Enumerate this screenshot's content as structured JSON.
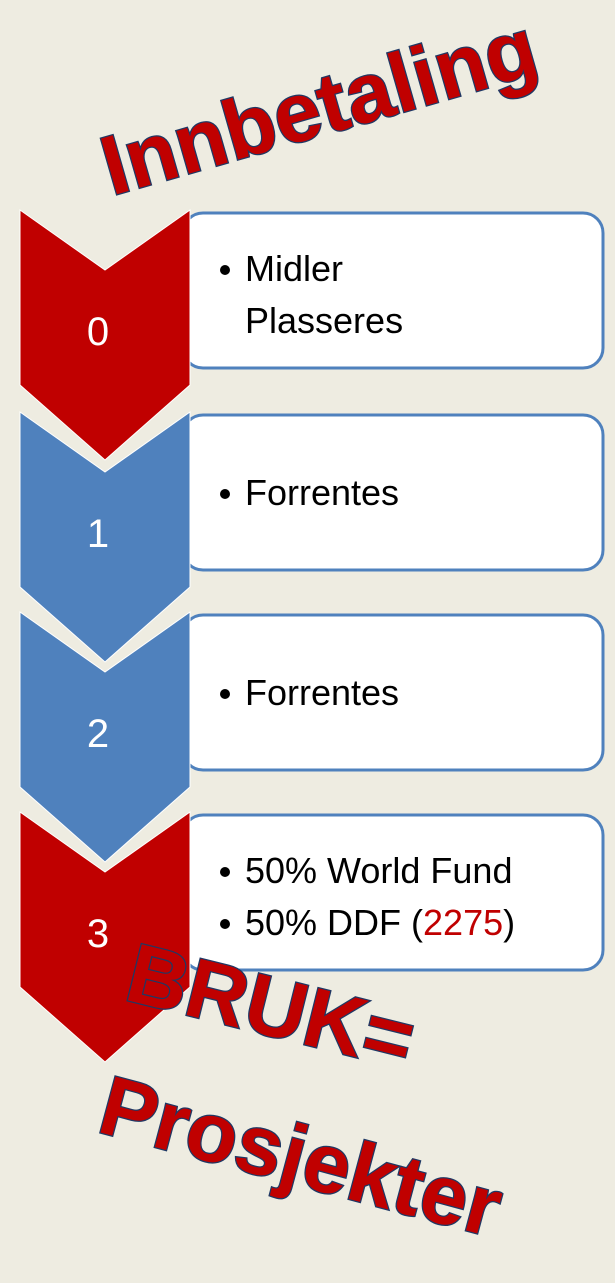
{
  "title": "Innbetaling",
  "steps": [
    {
      "number": "0",
      "color": "#c00000",
      "items": [
        {
          "lines": [
            "Midler",
            "Plasseres"
          ]
        }
      ]
    },
    {
      "number": "1",
      "color": "#4f81bd",
      "items": [
        {
          "lines": [
            "Forrentes"
          ]
        }
      ]
    },
    {
      "number": "2",
      "color": "#4f81bd",
      "items": [
        {
          "lines": [
            "Forrentes"
          ]
        }
      ]
    },
    {
      "number": "3",
      "color": "#c00000",
      "items": [
        {
          "lines": [
            "50% World Fund"
          ]
        },
        {
          "parts": [
            {
              "text": "50% DDF (",
              "color": "#000000"
            },
            {
              "text": "2275",
              "color": "#c00000"
            },
            {
              "text": ")",
              "color": "#000000"
            }
          ]
        }
      ]
    }
  ],
  "footer": [
    "BRUK=",
    "Prosjekter"
  ]
}
